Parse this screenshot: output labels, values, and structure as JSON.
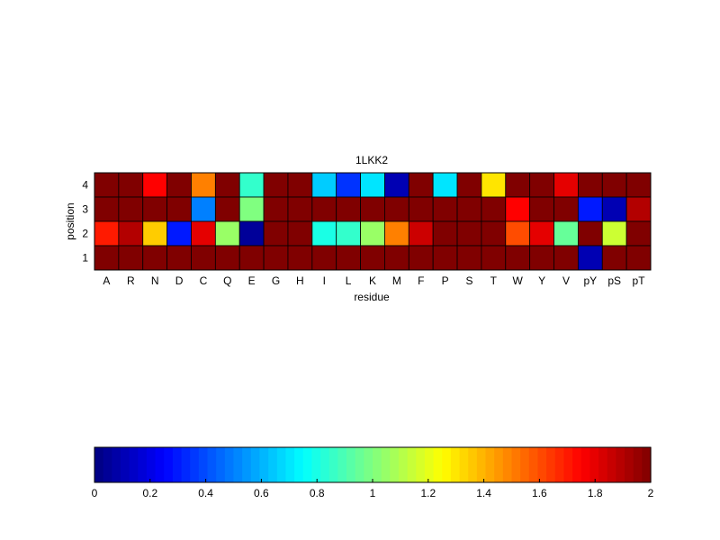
{
  "chart_data": {
    "type": "heatmap",
    "title": "1LKK2",
    "xlabel": "residue",
    "ylabel": "position",
    "x_categories": [
      "A",
      "R",
      "N",
      "D",
      "C",
      "Q",
      "E",
      "G",
      "H",
      "I",
      "L",
      "K",
      "M",
      "F",
      "P",
      "S",
      "T",
      "W",
      "Y",
      "V",
      "pY",
      "pS",
      "pT"
    ],
    "y_categories": [
      "1",
      "2",
      "3",
      "4"
    ],
    "rows": [
      {
        "position": "4",
        "values": [
          2,
          2,
          1.75,
          2,
          1.5,
          2,
          0.85,
          2,
          2,
          0.65,
          0.35,
          0.7,
          0.1,
          2,
          0.7,
          2,
          1.3,
          2,
          2,
          1.8,
          2,
          2,
          2
        ]
      },
      {
        "position": "3",
        "values": [
          2,
          2,
          2,
          2,
          0.5,
          2,
          1.0,
          2,
          2,
          2,
          2,
          2,
          2,
          2,
          2,
          2,
          2,
          1.75,
          2,
          2,
          0.3,
          0.1,
          1.9
        ]
      },
      {
        "position": "2",
        "values": [
          1.7,
          1.9,
          1.35,
          0.3,
          1.8,
          1.05,
          0.05,
          2,
          2,
          0.8,
          0.85,
          1.05,
          1.5,
          1.85,
          2,
          2,
          2,
          1.6,
          1.8,
          0.95,
          2,
          1.15,
          2
        ]
      },
      {
        "position": "1",
        "values": [
          2,
          2,
          2,
          2,
          2,
          2,
          2,
          2,
          2,
          2,
          2,
          2,
          2,
          2,
          2,
          2,
          2,
          2,
          2,
          2,
          0.1,
          2,
          2
        ]
      }
    ],
    "colormap": "jet",
    "colorbar": {
      "orientation": "horizontal",
      "range": [
        0,
        2
      ],
      "ticks": [
        0,
        0.2,
        0.4,
        0.6,
        0.8,
        1,
        1.2,
        1.4,
        1.6,
        1.8,
        2
      ],
      "tick_labels": [
        "0",
        "0.2",
        "0.4",
        "0.6",
        "0.8",
        "1",
        "1.2",
        "1.4",
        "1.6",
        "1.8",
        "2"
      ]
    }
  }
}
